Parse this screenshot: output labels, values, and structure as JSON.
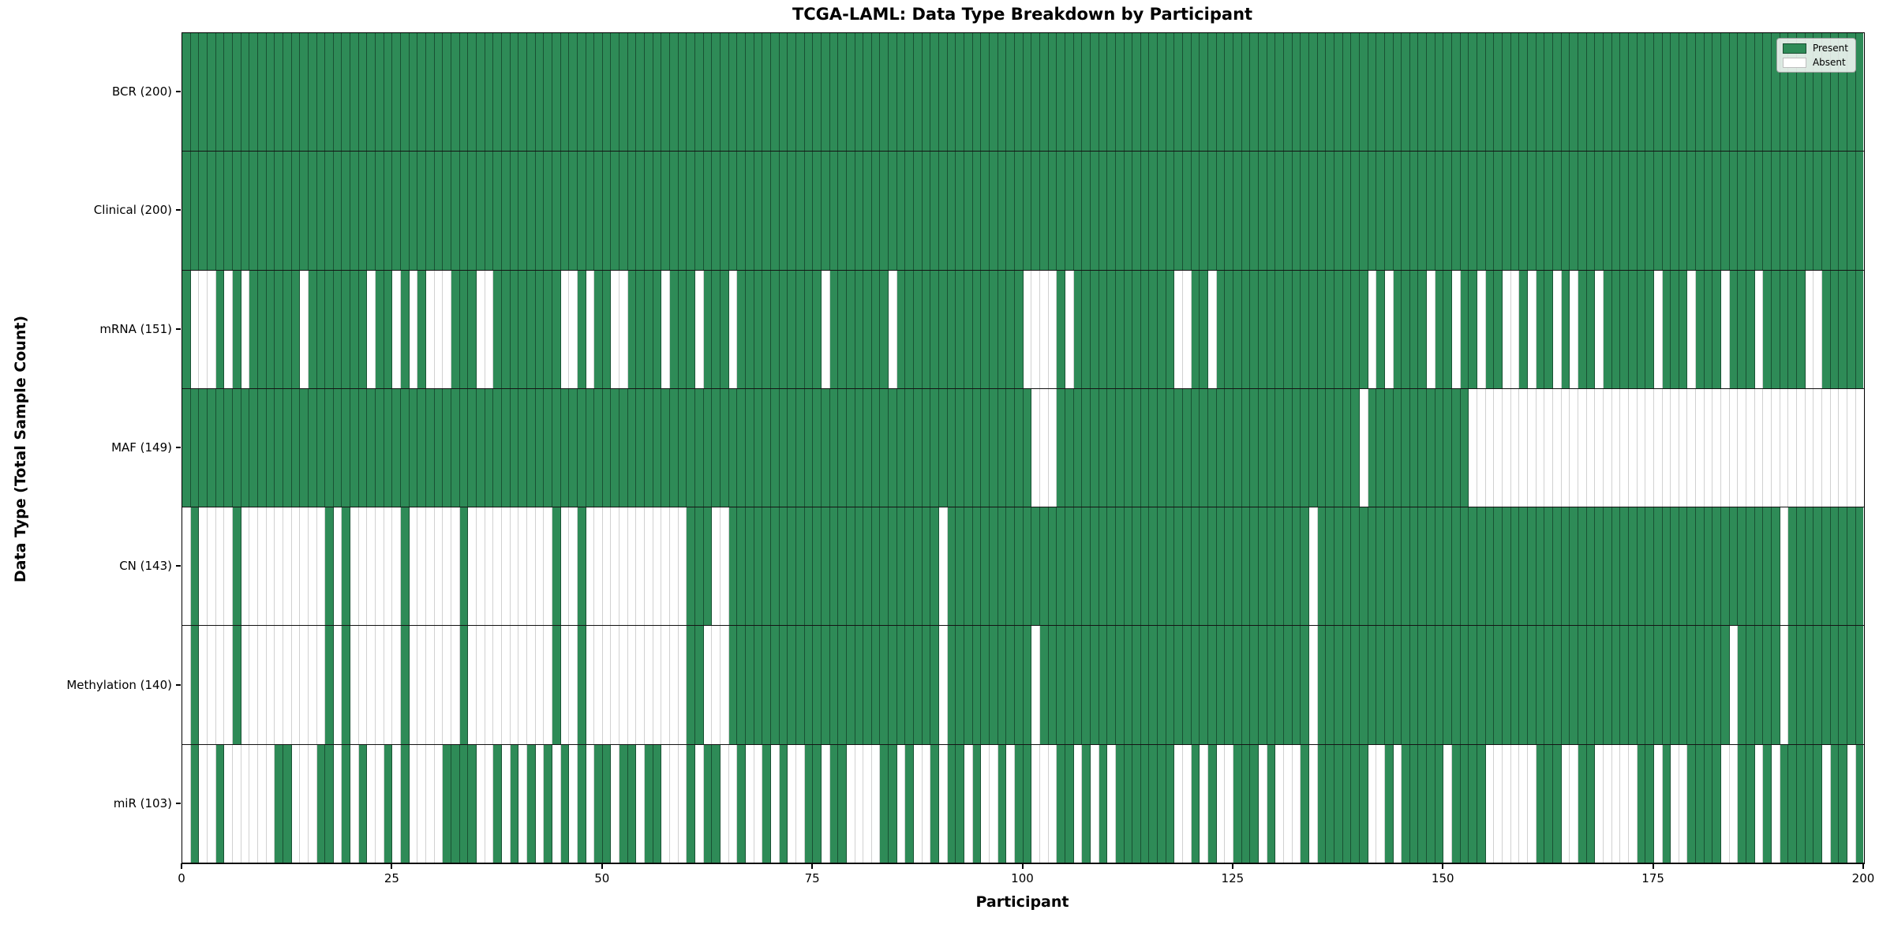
{
  "chart_data": {
    "type": "heatmap",
    "title": "TCGA-LAML: Data Type Breakdown by Participant",
    "xlabel": "Participant",
    "ylabel": "Data Type (Total Sample Count)",
    "x_range": [
      0,
      200
    ],
    "n_participants": 200,
    "x_ticks": [
      0,
      25,
      50,
      75,
      100,
      125,
      150,
      175,
      200
    ],
    "grid": false,
    "legend_position": "upper right",
    "legend": {
      "present_label": "Present",
      "absent_label": "Absent"
    },
    "colors": {
      "present": "#2e8b57",
      "absent": "#ffffff",
      "cell_edge_on_green": "rgba(10,35,22,0.55)",
      "cell_edge_on_white": "rgba(0,0,0,0.18)",
      "row_separator": "#141414",
      "plot_border": "#000000",
      "background": "#ffffff"
    },
    "rows": [
      {
        "label": "BCR (200)",
        "data_type": "BCR",
        "total_sample_count": 200,
        "absent_participants": []
      },
      {
        "label": "Clinical (200)",
        "data_type": "Clinical",
        "total_sample_count": 200,
        "absent_participants": []
      },
      {
        "label": "mRNA (151)",
        "data_type": "mRNA",
        "total_sample_count": 151,
        "absent_participants": [
          1,
          2,
          3,
          5,
          7,
          14,
          22,
          25,
          27,
          29,
          30,
          31,
          35,
          36,
          45,
          46,
          48,
          51,
          52,
          57,
          61,
          65,
          76,
          84,
          100,
          101,
          102,
          103,
          105,
          118,
          119,
          122,
          141,
          143,
          148,
          151,
          154,
          157,
          158,
          160,
          163,
          165,
          168,
          175,
          179,
          183,
          187,
          193,
          194
        ]
      },
      {
        "label": "MAF (149)",
        "data_type": "MAF",
        "total_sample_count": 149,
        "absent_participants": [
          101,
          102,
          103,
          140,
          153,
          154,
          155,
          156,
          157,
          158,
          159,
          160,
          161,
          162,
          163,
          164,
          165,
          166,
          167,
          168,
          169,
          170,
          171,
          172,
          173,
          174,
          175,
          176,
          177,
          178,
          179,
          180,
          181,
          182,
          183,
          184,
          185,
          186,
          187,
          188,
          189,
          190,
          191,
          192,
          193,
          194,
          195,
          196,
          197,
          198,
          199
        ]
      },
      {
        "label": "CN (143)",
        "data_type": "CN",
        "total_sample_count": 143,
        "absent_participants": [
          0,
          2,
          3,
          4,
          5,
          7,
          8,
          9,
          10,
          11,
          12,
          13,
          14,
          15,
          16,
          18,
          20,
          21,
          22,
          23,
          24,
          25,
          27,
          28,
          29,
          30,
          31,
          32,
          34,
          35,
          36,
          37,
          38,
          39,
          40,
          41,
          42,
          43,
          45,
          46,
          48,
          49,
          50,
          51,
          52,
          53,
          54,
          55,
          56,
          57,
          58,
          59,
          63,
          64,
          90,
          134,
          190
        ]
      },
      {
        "label": "Methylation (140)",
        "data_type": "Methylation",
        "total_sample_count": 140,
        "absent_participants": [
          0,
          2,
          3,
          4,
          5,
          7,
          8,
          9,
          10,
          11,
          12,
          13,
          14,
          15,
          16,
          18,
          20,
          21,
          22,
          23,
          24,
          25,
          27,
          28,
          29,
          30,
          31,
          32,
          34,
          35,
          36,
          37,
          38,
          39,
          40,
          41,
          42,
          43,
          45,
          46,
          48,
          49,
          50,
          51,
          52,
          53,
          54,
          55,
          56,
          57,
          58,
          59,
          62,
          63,
          64,
          90,
          101,
          134,
          184,
          190
        ]
      },
      {
        "label": "miR (103)",
        "data_type": "miR",
        "total_sample_count": 103,
        "absent_participants": [
          0,
          2,
          3,
          5,
          6,
          7,
          8,
          9,
          10,
          13,
          14,
          15,
          18,
          20,
          22,
          23,
          25,
          27,
          28,
          29,
          30,
          35,
          36,
          38,
          40,
          42,
          44,
          46,
          48,
          51,
          54,
          57,
          58,
          59,
          61,
          64,
          65,
          67,
          68,
          70,
          72,
          73,
          76,
          79,
          80,
          81,
          82,
          85,
          87,
          88,
          90,
          93,
          95,
          96,
          98,
          101,
          102,
          103,
          106,
          108,
          110,
          118,
          119,
          121,
          123,
          124,
          128,
          130,
          131,
          132,
          134,
          141,
          142,
          144,
          150,
          155,
          156,
          157,
          158,
          159,
          160,
          164,
          165,
          168,
          169,
          170,
          171,
          172,
          175,
          177,
          178,
          183,
          184,
          187,
          189,
          195,
          198
        ]
      }
    ]
  }
}
